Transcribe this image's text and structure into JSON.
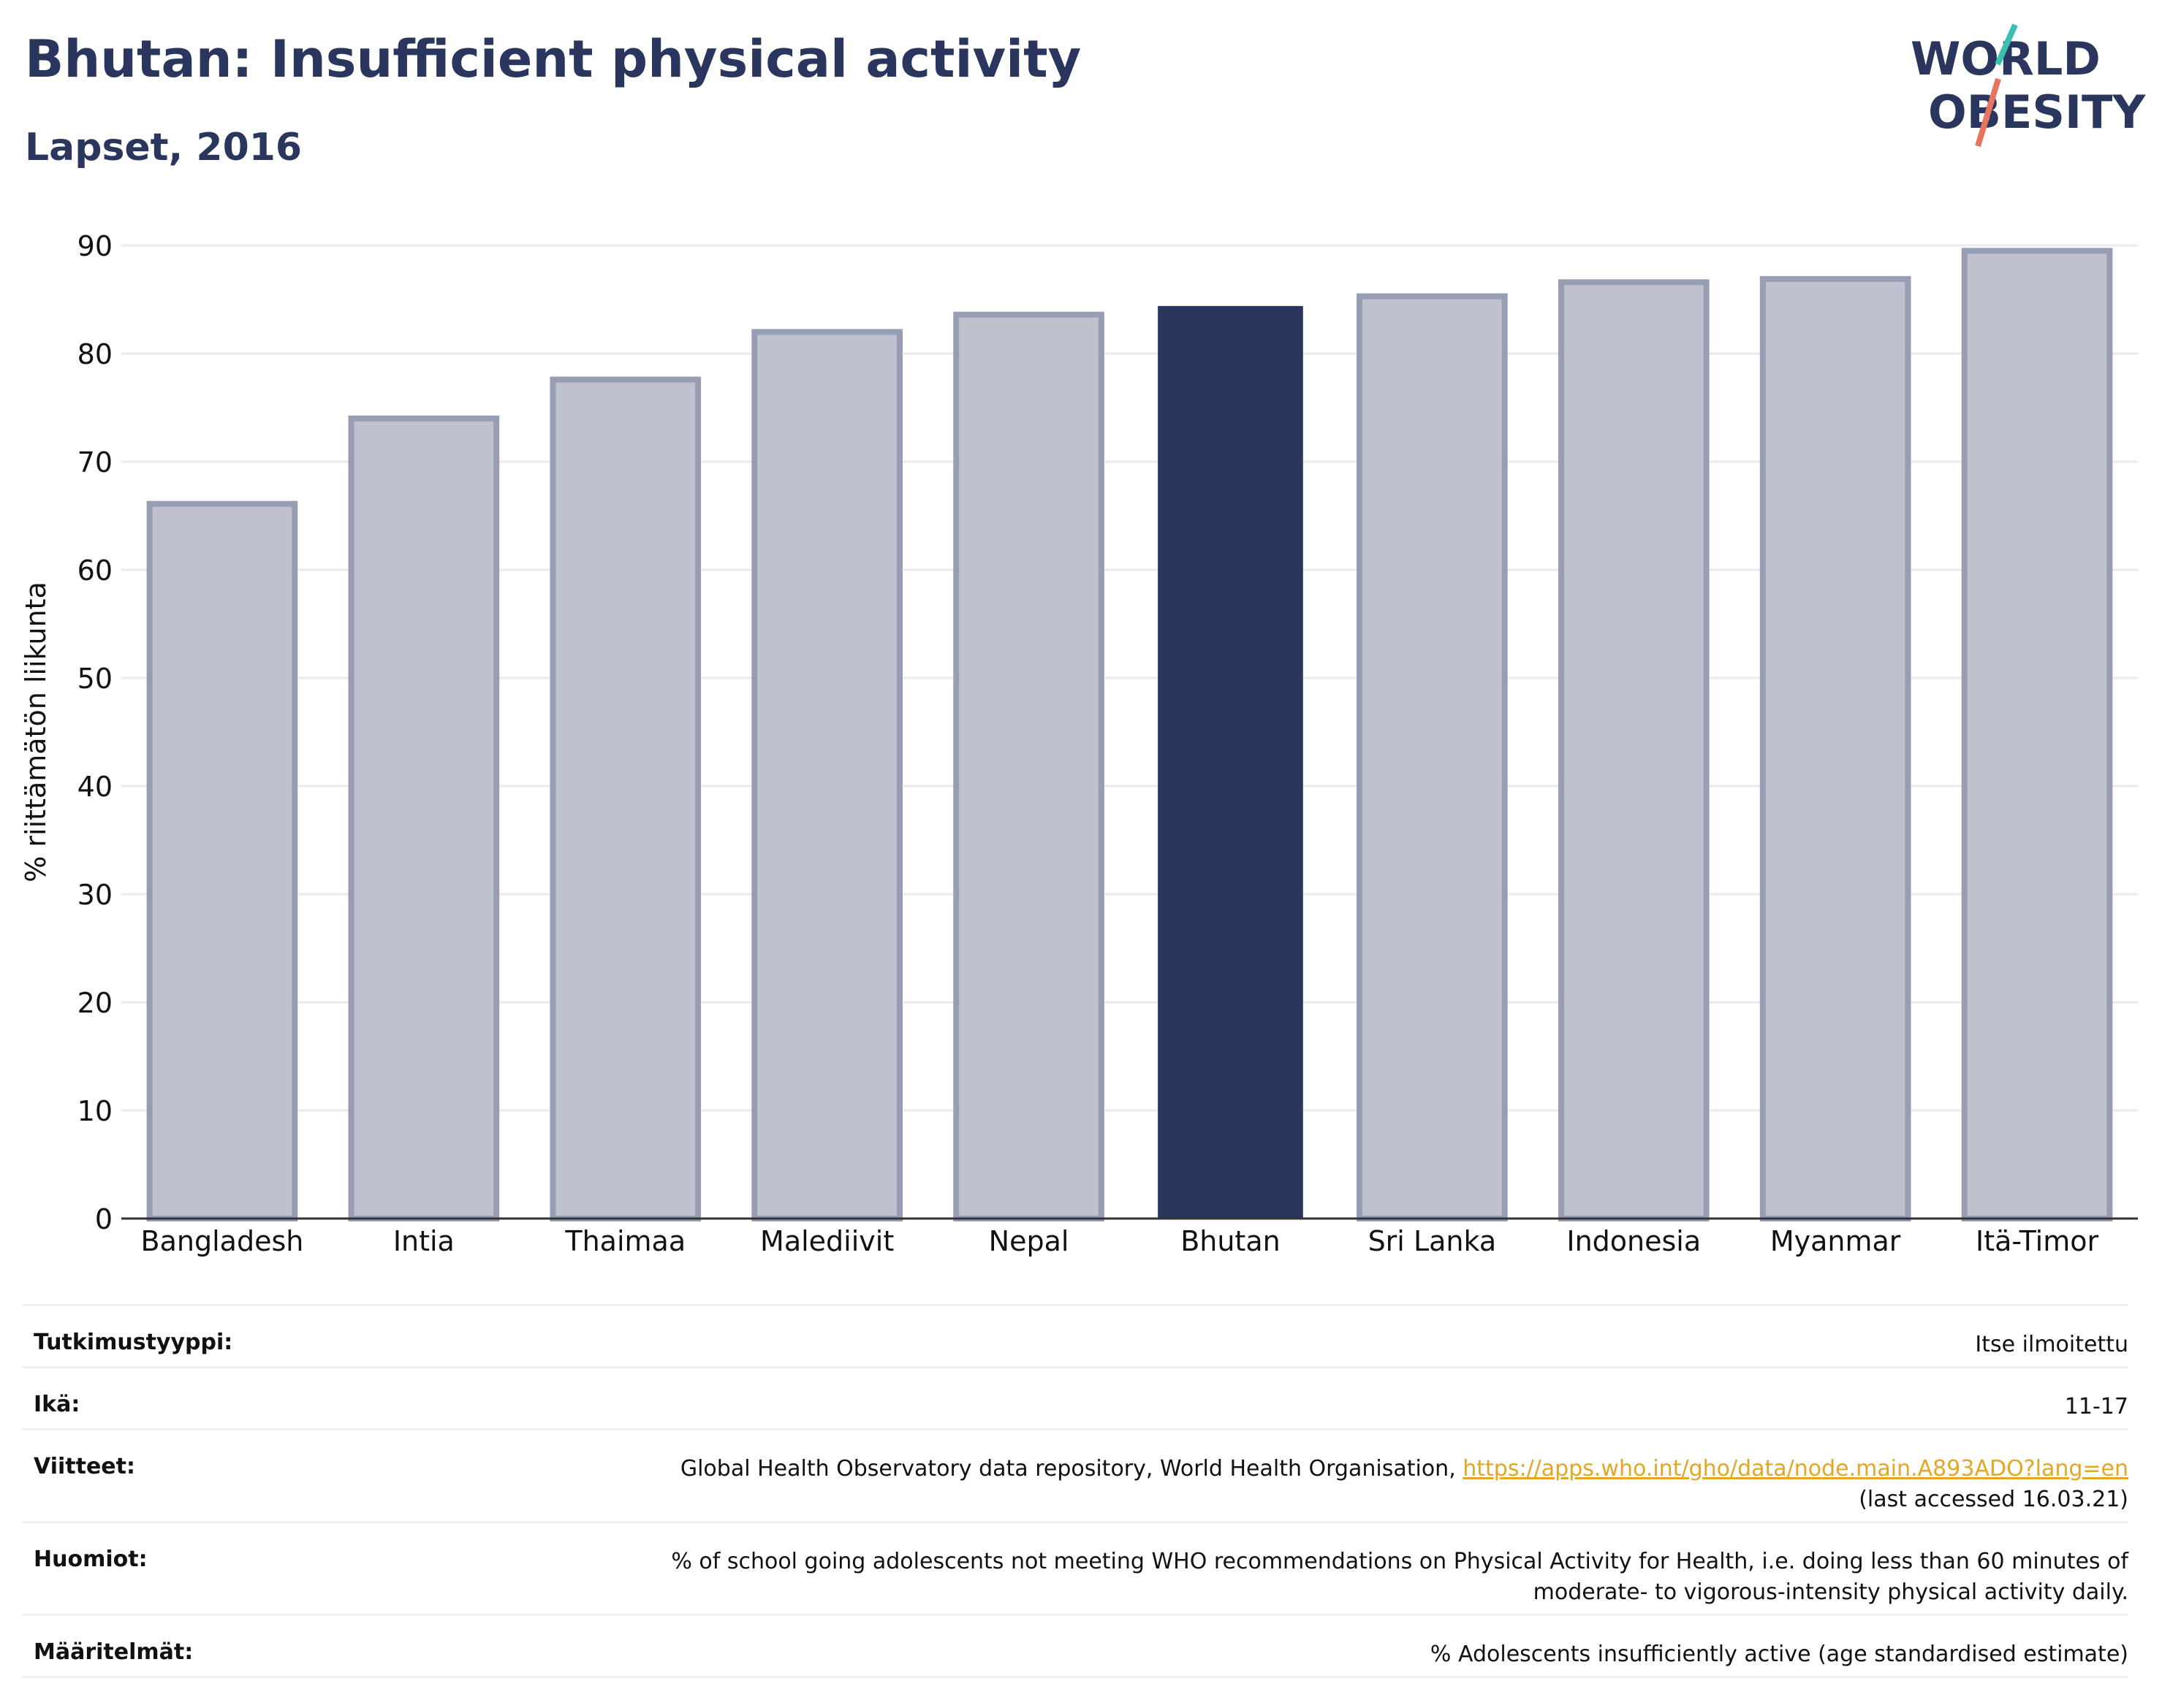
{
  "header": {
    "title": "Bhutan: Insufficient physical activity",
    "subtitle": "Lapset, 2016"
  },
  "logo": {
    "line1": "WORLD",
    "line2": "OBESITY"
  },
  "colors": {
    "highlight": "#2a365e",
    "bar": "#bfc2ce",
    "bar_border": "#979db3",
    "link": "#e5a623",
    "logo_teal": "#3bbfb0",
    "logo_red": "#e8735f"
  },
  "chart_data": {
    "type": "bar",
    "title": "Bhutan: Insufficient physical activity",
    "subtitle": "Lapset, 2016",
    "xlabel": "",
    "ylabel": "% riittämätön liikunta",
    "ylim": [
      0,
      90
    ],
    "yticks": [
      0,
      10,
      20,
      30,
      40,
      50,
      60,
      70,
      80,
      90
    ],
    "grid": true,
    "categories": [
      "Bangladesh",
      "Intia",
      "Thaimaa",
      "Malediivit",
      "Nepal",
      "Bhutan",
      "Sri Lanka",
      "Indonesia",
      "Myanmar",
      "Itä-Timor"
    ],
    "values": [
      66.1,
      74.0,
      77.6,
      82.0,
      83.6,
      84.4,
      85.3,
      86.6,
      86.9,
      89.5
    ],
    "highlight": "Bhutan"
  },
  "meta": {
    "study_type": {
      "label": "Tutkimustyyppi:",
      "value": "Itse ilmoitettu"
    },
    "age": {
      "label": "Ikä:",
      "value": "11-17"
    },
    "references": {
      "label": "Viitteet:",
      "text": "Global Health Observatory data repository, World Health Organisation, ",
      "link": "https://apps.who.int/gho/data/node.main.A893ADO?lang=en",
      "accessed": "(last accessed 16.03.21)"
    },
    "notes": {
      "label": "Huomiot:",
      "line1": "% of school going adolescents not meeting WHO recommendations on Physical Activity for Health, i.e. doing less than 60 minutes of",
      "line2": "moderate- to vigorous-intensity physical activity daily."
    },
    "definitions": {
      "label": "Määritelmät:",
      "value": "% Adolescents insufficiently active (age standardised estimate)"
    }
  }
}
